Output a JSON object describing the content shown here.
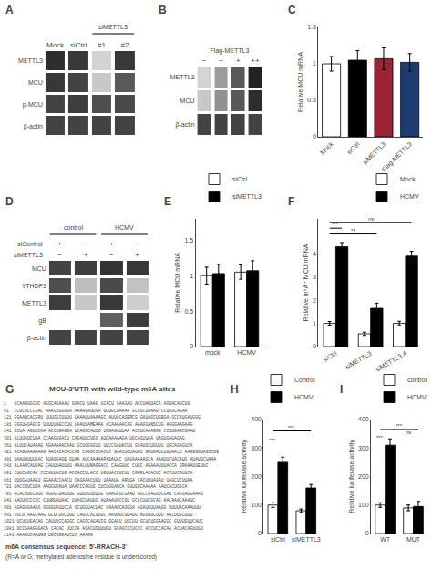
{
  "chart_data": [
    {
      "type": "heatmap",
      "title": "A",
      "categories": [
        "Mock",
        "siCtrl",
        "#1",
        "#2"
      ],
      "groups": [
        {
          "label": "siMETTL3",
          "positions": [
            2,
            3
          ]
        }
      ],
      "rows": [
        "METTL3",
        "MCU",
        "p-MCU",
        "β-actin"
      ],
      "cells": [
        [
          0.95,
          0.9,
          0.2,
          0.9
        ],
        [
          0.9,
          0.85,
          0.25,
          0.75
        ],
        [
          0.85,
          0.88,
          0.8,
          0.82
        ],
        [
          0.85,
          0.85,
          0.85,
          0.85
        ]
      ],
      "zlim": [
        0,
        1
      ]
    },
    {
      "type": "heatmap",
      "title": "B",
      "xlabel": "Flag-METTL3",
      "categories": [
        "−",
        "−",
        "+",
        "++"
      ],
      "rows": [
        "METTL3",
        "MCU",
        "β-actin"
      ],
      "cells": [
        [
          0.2,
          0.45,
          0.75,
          1.0
        ],
        [
          0.25,
          0.5,
          0.75,
          0.95
        ],
        [
          0.85,
          0.85,
          0.85,
          0.85
        ]
      ],
      "zlim": [
        0,
        1
      ]
    },
    {
      "type": "bar",
      "title": "C",
      "categories": [
        "Mock",
        "siCtrl",
        "siMETTL3",
        "Flag-METTL3"
      ],
      "values": [
        1.0,
        1.05,
        1.07,
        1.02
      ],
      "errors": [
        0.1,
        0.13,
        0.15,
        0.12
      ],
      "colors": [
        "#ffffff",
        "#000000",
        "#9b2335",
        "#1f3c6e"
      ],
      "ylabel": "Relative MCU mRNA",
      "ylim": [
        0,
        1.5
      ],
      "yticks": [
        0,
        0.5,
        1,
        1.5
      ]
    },
    {
      "type": "heatmap",
      "title": "D",
      "groups": [
        {
          "label": "control",
          "positions": [
            0,
            1
          ]
        },
        {
          "label": "HCMV",
          "positions": [
            2,
            3
          ]
        }
      ],
      "marks": [
        {
          "label": "siControl",
          "values": [
            "+",
            "−",
            "+",
            "−"
          ]
        },
        {
          "label": "siMETTL3",
          "values": [
            "−",
            "+",
            "−",
            "+"
          ]
        }
      ],
      "rows": [
        "MCU",
        "YTHDF3",
        "METTL3",
        "gB",
        "β-actin"
      ],
      "cells": [
        [
          0.85,
          0.88,
          0.92,
          0.9
        ],
        [
          0.8,
          0.3,
          0.82,
          0.28
        ],
        [
          0.88,
          0.25,
          0.9,
          0.22
        ],
        [
          0.0,
          0.0,
          0.72,
          0.88
        ],
        [
          0.85,
          0.85,
          0.85,
          0.85
        ]
      ],
      "zlim": [
        0,
        1
      ]
    },
    {
      "type": "bar",
      "title": "E",
      "categories": [
        "mock",
        "HCMV"
      ],
      "series": [
        {
          "name": "siCtrl",
          "color": "#ffffff",
          "values": [
            1.0,
            1.05
          ],
          "errors": [
            0.12,
            0.1
          ]
        },
        {
          "name": "siMETTL3",
          "color": "#000000",
          "values": [
            1.03,
            1.07
          ],
          "errors": [
            0.13,
            0.14
          ]
        }
      ],
      "ylabel": "Relative MCU mRNA",
      "ylim": [
        0,
        1.8
      ],
      "yticks": [
        0,
        0.5,
        1,
        1.5
      ],
      "legend": "upper left"
    },
    {
      "type": "bar",
      "title": "F",
      "categories": [
        "siCtrl",
        "siMETTL3",
        "siMETTL3.4"
      ],
      "series": [
        {
          "name": "Mock",
          "color": "#ffffff",
          "values": [
            1.0,
            0.55,
            1.0
          ],
          "errors": [
            0.08,
            0.07,
            0.09
          ]
        },
        {
          "name": "HCMV",
          "color": "#000000",
          "values": [
            4.3,
            1.65,
            3.9
          ],
          "errors": [
            0.18,
            0.22,
            0.2
          ]
        }
      ],
      "ylabel": "Relative m⁶A⁺ MCU mRNA",
      "ylim": [
        0,
        5.5
      ],
      "yticks": [
        0,
        1,
        2,
        3,
        4
      ],
      "legend": "upper right",
      "annotations": [
        {
          "text": "***",
          "from": 0,
          "to": 0,
          "y": 5.1
        },
        {
          "text": "**",
          "from": 0,
          "to": 1,
          "y": 4.85
        },
        {
          "text": "ns",
          "from": 0,
          "to": 2,
          "y": 5.35
        }
      ]
    },
    {
      "type": "text",
      "title": "G",
      "subtitle": "MCU-3'UTR with wild-type m6A sites",
      "lines": [
        "1   GCAAUUGCUC AGGCAGAAAU GGACU UAAG GCACU GAAGAG ACCUAUUACA AGUACAUCUG",
        "61  CCUCUCCCGAC AAALUGGUGA AAAAGAUUGA UCUGCAAAAA GCCUCUGAAU CCUGGCAGAA",
        "121 GGAANCACERU UUUGECUUUU UAAAUUAAAAGC AUUGCAGERCG GAUAGCUGBGA GCCAUGAUGGG",
        "181 GGGUAGAGCG UUUUUAECCUU LAAUUAMEAAA ACAAAAACAG AAAGGANSCUG AGGGAAGAAG",
        "241 GCUA AGUUCAA ACCUGAGGA UCAGGCAUUG UGGAGAUUAA ACCUCAAAGGG CCUUGAGCGAAU",
        "301 ALUUGUCUAA CCAAGUGACU CAGAUUCUGG AUGAAAAAGA UGCAGUUAA UAGUGAGAGAG",
        "361 ALUUCAUAAAG AGAAAAACAAU GCUGGGGUG UUCCGAUACUU GCAUGCUGUUU UGCAGAGUCA",
        "421 GCAGAAAGAAAG AACACACACCAG CAGGCCCACUC GAACUCUAUGU GRUGAULUUAAALU AAGGGGUAGCCDE",
        "481 UAAUUUUUGAC AUAGGAGE GUAA AUCAAAAAPADAUAC UAGAAAAAGCA AAAUUCUACAUG AUAUGCUAAA",
        "541 ALAAUCAUUAG CAUUUAUUUU AAALUUNAGGACC CAAGUUC CUGC AGAAAUUUACCA GRAAAUUEUUC",
        "601 CUUCAGCAU CCCUUUACUG ACCACCULACC UGUUACCUCUU CGGRLACACUC ACCUUCGUUCA",
        "661 UUUGAUAAGU GGAAACCAACU CAGAAACUGU UAAAUA ARUGA CACUUUAGAU UAGCUCUUAA",
        "721 UACCUUCURA AAGGUUAUA UAACCCAGUG CUCUGGAUCA GUUGUCAAAAA AAUCACUGGCA",
        "781 ACACUUGCAUG AGGGCUAGUUG GUUUGUUUGG UAAGCGCGAAU AGCCGAGUUCGAU CAGGAGGAAAU",
        "841 AAGUGCCCUC CUURUAUAAC UUAGCUAUUG AUAAAUGCCGU GCCCUUCGCAG AACAAACAAAUC",
        "901 AGAGGGAAAG GGGGUGUUCCA GCUGUUACUAC CAAAUCAGGGA AGAUGUUAAGG UUUUACAAAUUU",
        "961 GGCU AAGCAAG GCUCUGCUUU CAGCCALUUUC AAUUUCUUAUG AGUUUCUUU AGCUUGCUUU",
        "1021 UCUGUGACAG CAUUUCCAGGC CAGCCAGAUIG GGACU UCCUU GCUCUGGAAGGC GUUUGUUCAUC",
        "1081 UCCGAAGGGACA CACAC UUCCA ACACUGUUUGU GCAGCCCUCCC ACCUCCACAA ACUACAGUUGU",
        "1141 AAAUUCAAUNG UGCGGGAUCUC AAAGG"
      ],
      "annotations": [
        "m6A consensus sequence: 5'-RRACH-3'",
        "(R=A or G; methylated adenosine residue is underscored)"
      ]
    },
    {
      "type": "bar",
      "title": "H",
      "categories": [
        "siCtrl",
        "siMETTL3"
      ],
      "series": [
        {
          "name": "Control",
          "color": "#ffffff",
          "values": [
            100,
            80
          ],
          "errors": [
            8,
            6
          ]
        },
        {
          "name": "HCMV",
          "color": "#000000",
          "values": [
            250,
            160
          ],
          "errors": [
            18,
            12
          ]
        }
      ],
      "ylabel": "Relative luciferase activity",
      "ylim": [
        0,
        400
      ],
      "yticks": [
        0,
        100,
        200,
        300,
        400
      ],
      "legend": "upper right",
      "annotations": [
        {
          "text": "***",
          "from": 0,
          "to": 1,
          "y": 360
        },
        {
          "text": "***",
          "x": 0,
          "y": 310
        }
      ]
    },
    {
      "type": "bar",
      "title": "I",
      "categories": [
        "WT",
        "MUT"
      ],
      "series": [
        {
          "name": "control",
          "color": "#ffffff",
          "values": [
            100,
            90
          ],
          "errors": [
            8,
            10
          ]
        },
        {
          "name": "HCMV",
          "color": "#000000",
          "values": [
            310,
            95
          ],
          "errors": [
            22,
            18
          ]
        }
      ],
      "ylabel": "Relative luciferase activity",
      "ylim": [
        0,
        400
      ],
      "yticks": [
        0,
        100,
        200,
        300,
        400
      ],
      "legend": "upper left",
      "annotations": [
        {
          "text": "***",
          "from": 0,
          "to": 1,
          "y": 365
        },
        {
          "text": "ns",
          "x": 1,
          "y": 340
        },
        {
          "text": "***",
          "x": 0,
          "y": 320
        }
      ]
    }
  ]
}
